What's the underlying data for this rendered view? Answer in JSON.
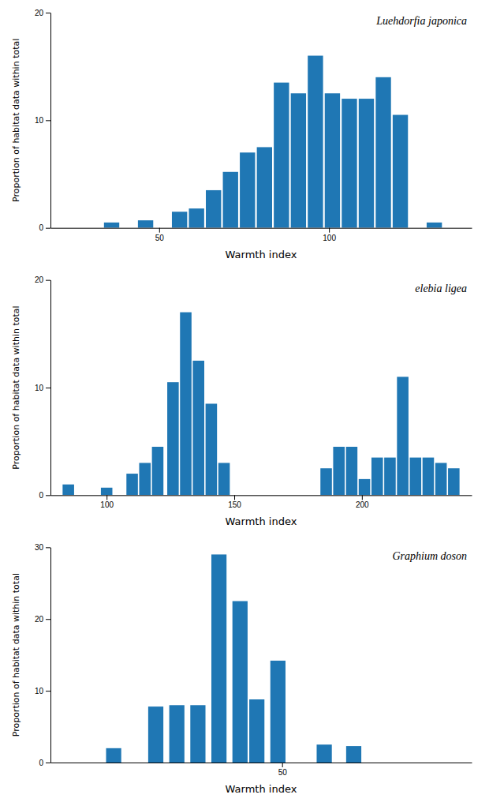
{
  "chart_data": [
    {
      "type": "bar",
      "title": "Luehdorfia japonica",
      "xlabel": "Warmth index",
      "ylabel": "Proportion of habitat data within total",
      "x": [
        36,
        46,
        56,
        61,
        66,
        71,
        76,
        81,
        86,
        91,
        96,
        101,
        106,
        111,
        116,
        121,
        131
      ],
      "values": [
        0.5,
        0.7,
        1.5,
        1.8,
        3.5,
        5.2,
        7.0,
        7.5,
        13.5,
        12.5,
        16.0,
        12.5,
        12.0,
        12.0,
        14.0,
        10.5,
        0.5
      ],
      "xlim": [
        18,
        142
      ],
      "ylim": [
        0,
        20
      ],
      "xticks": [
        50,
        100
      ],
      "yticks": [
        0,
        10,
        20
      ]
    },
    {
      "type": "bar",
      "title": "elebia ligea",
      "xlabel": "Warmth index",
      "ylabel": "Proportion of habitat data within total",
      "x": [
        85,
        100,
        110,
        115,
        120,
        126,
        131,
        136,
        141,
        146,
        186,
        191,
        196,
        201,
        206,
        211,
        216,
        221,
        226,
        231,
        236
      ],
      "values": [
        1.0,
        0.7,
        2.0,
        3.0,
        4.5,
        10.5,
        17.0,
        12.5,
        8.5,
        3.0,
        2.5,
        4.5,
        4.5,
        1.5,
        3.5,
        3.5,
        11.0,
        3.5,
        3.5,
        3.0,
        2.5
      ],
      "xlim": [
        78,
        243
      ],
      "ylim": [
        0,
        20
      ],
      "xticks": [
        100,
        150,
        200
      ],
      "yticks": [
        0,
        10,
        20
      ]
    },
    {
      "type": "bar",
      "title": "Graphium doson",
      "xlabel": "Warmth index",
      "ylabel": "Proportion of habitat data within total",
      "x": [
        10,
        20,
        25,
        30,
        35,
        40,
        44,
        49,
        60,
        67
      ],
      "values": [
        2.0,
        7.8,
        8.0,
        8.0,
        29.0,
        22.5,
        8.8,
        14.2,
        2.5,
        2.3
      ],
      "xlim": [
        -5,
        95
      ],
      "ylim": [
        0,
        30
      ],
      "xticks": [
        50
      ],
      "yticks": [
        0,
        10,
        20,
        30
      ]
    }
  ]
}
